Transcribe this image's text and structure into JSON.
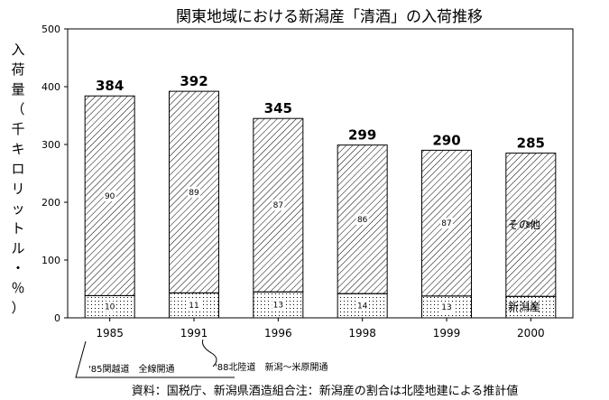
{
  "chart_data": {
    "type": "bar",
    "stacked": true,
    "title": "関東地域における新潟産「清酒」の入荷推移",
    "ylabel": "入荷量（千キロリットル・％）",
    "ylim": [
      0,
      500
    ],
    "yticks": [
      0,
      100,
      200,
      300,
      400,
      500
    ],
    "categories": [
      "1985",
      "1991",
      "1996",
      "1998",
      "1999",
      "2000"
    ],
    "totals": [
      384,
      392,
      345,
      299,
      290,
      285
    ],
    "series": [
      {
        "name": "新潟産",
        "pattern": "dots",
        "percent": [
          10,
          11,
          13,
          14,
          13,
          13
        ]
      },
      {
        "name": "その他",
        "pattern": "hatch",
        "percent": [
          90,
          89,
          87,
          86,
          87,
          87
        ]
      }
    ],
    "annotations": [
      "'85関越道　全線開通",
      "'88北陸道　新潟～米原開通"
    ],
    "source": "資料：国税庁、新潟県酒造組合注：新潟産の割合は北陸地建による推計値",
    "grid": false
  }
}
